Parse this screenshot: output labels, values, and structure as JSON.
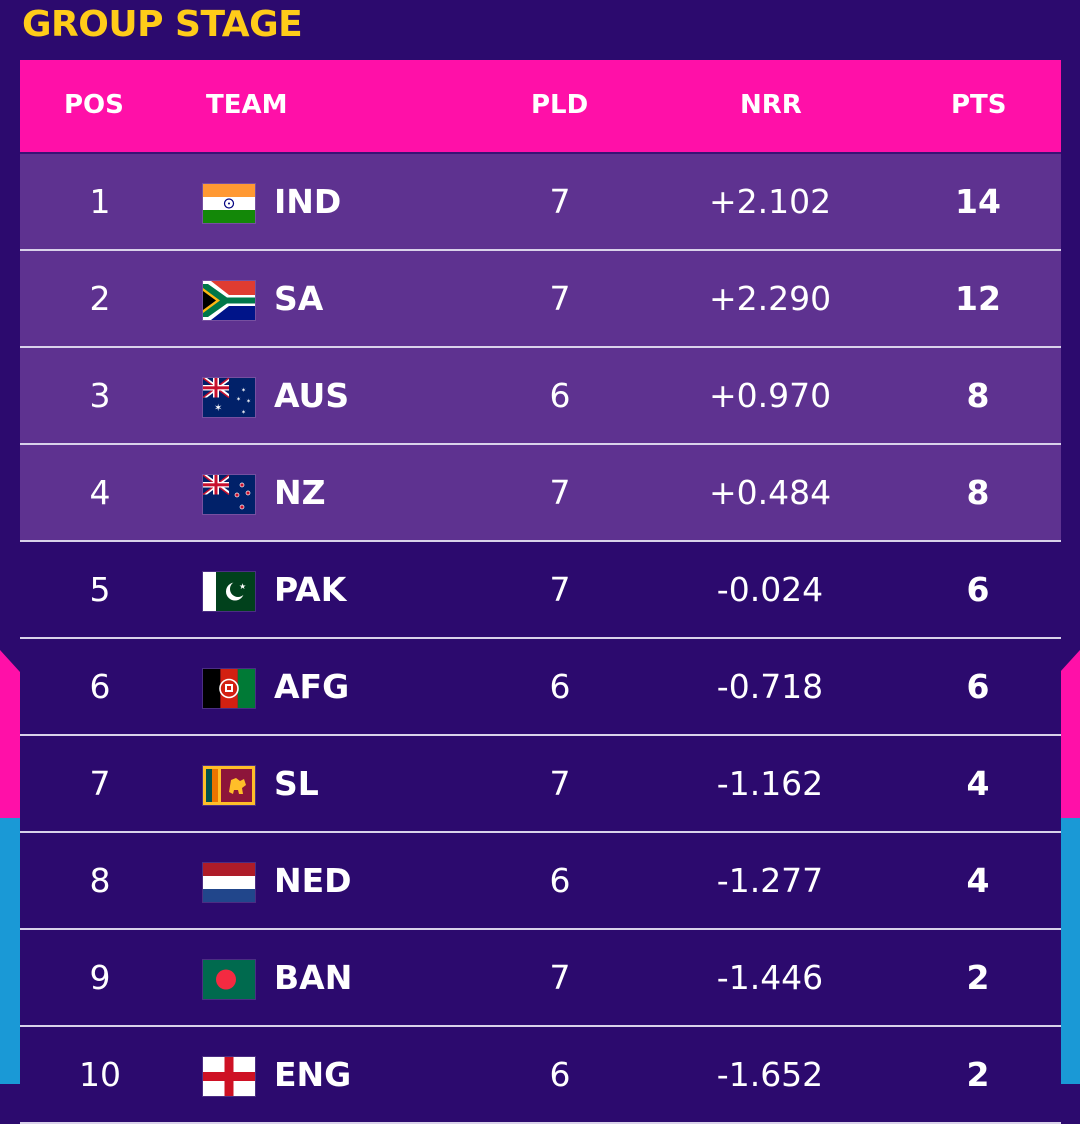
{
  "title": "GROUP STAGE",
  "headers": {
    "pos": "POS",
    "team": "TEAM",
    "pld": "PLD",
    "nrr": "NRR",
    "pts": "PTS"
  },
  "rows": [
    {
      "pos": "1",
      "team": "IND",
      "flag": "india-flag-icon",
      "pld": "7",
      "nrr": "+2.102",
      "pts": "14"
    },
    {
      "pos": "2",
      "team": "SA",
      "flag": "south-africa-flag-icon",
      "pld": "7",
      "nrr": "+2.290",
      "pts": "12"
    },
    {
      "pos": "3",
      "team": "AUS",
      "flag": "australia-flag-icon",
      "pld": "6",
      "nrr": "+0.970",
      "pts": "8"
    },
    {
      "pos": "4",
      "team": "NZ",
      "flag": "new-zealand-flag-icon",
      "pld": "7",
      "nrr": "+0.484",
      "pts": "8"
    },
    {
      "pos": "5",
      "team": "PAK",
      "flag": "pakistan-flag-icon",
      "pld": "7",
      "nrr": "-0.024",
      "pts": "6"
    },
    {
      "pos": "6",
      "team": "AFG",
      "flag": "afghanistan-flag-icon",
      "pld": "6",
      "nrr": "-0.718",
      "pts": "6"
    },
    {
      "pos": "7",
      "team": "SL",
      "flag": "sri-lanka-flag-icon",
      "pld": "7",
      "nrr": "-1.162",
      "pts": "4"
    },
    {
      "pos": "8",
      "team": "NED",
      "flag": "netherlands-flag-icon",
      "pld": "6",
      "nrr": "-1.277",
      "pts": "4"
    },
    {
      "pos": "9",
      "team": "BAN",
      "flag": "bangladesh-flag-icon",
      "pld": "7",
      "nrr": "-1.446",
      "pts": "2"
    },
    {
      "pos": "10",
      "team": "ENG",
      "flag": "england-flag-icon",
      "pld": "6",
      "nrr": "-1.652",
      "pts": "2"
    }
  ],
  "colors": {
    "background": "#2c0a6e",
    "header": "#ff10a8",
    "qualified_row": "#5e3290",
    "title": "#ffcc19",
    "accent_blue": "#1a99d6"
  }
}
